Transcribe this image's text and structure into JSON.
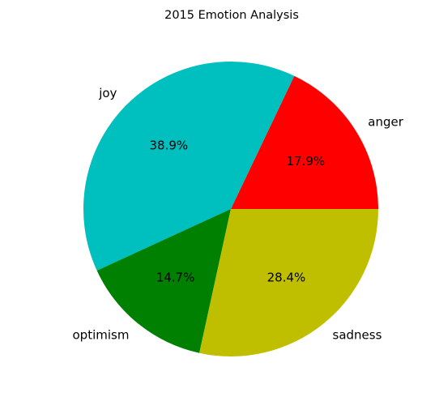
{
  "chart_data": {
    "type": "pie",
    "title": "2015 Emotion Analysis",
    "categories": [
      "anger",
      "joy",
      "optimism",
      "sadness"
    ],
    "values": [
      17.9,
      38.9,
      14.7,
      28.4
    ],
    "value_labels": [
      "17.9%",
      "38.9%",
      "14.7%",
      "28.4%"
    ],
    "colors": [
      "#ff0000",
      "#00bfbf",
      "#008000",
      "#bfbf00"
    ],
    "start_angle_deg": 0,
    "direction": "counterclockwise",
    "legend": "none"
  }
}
